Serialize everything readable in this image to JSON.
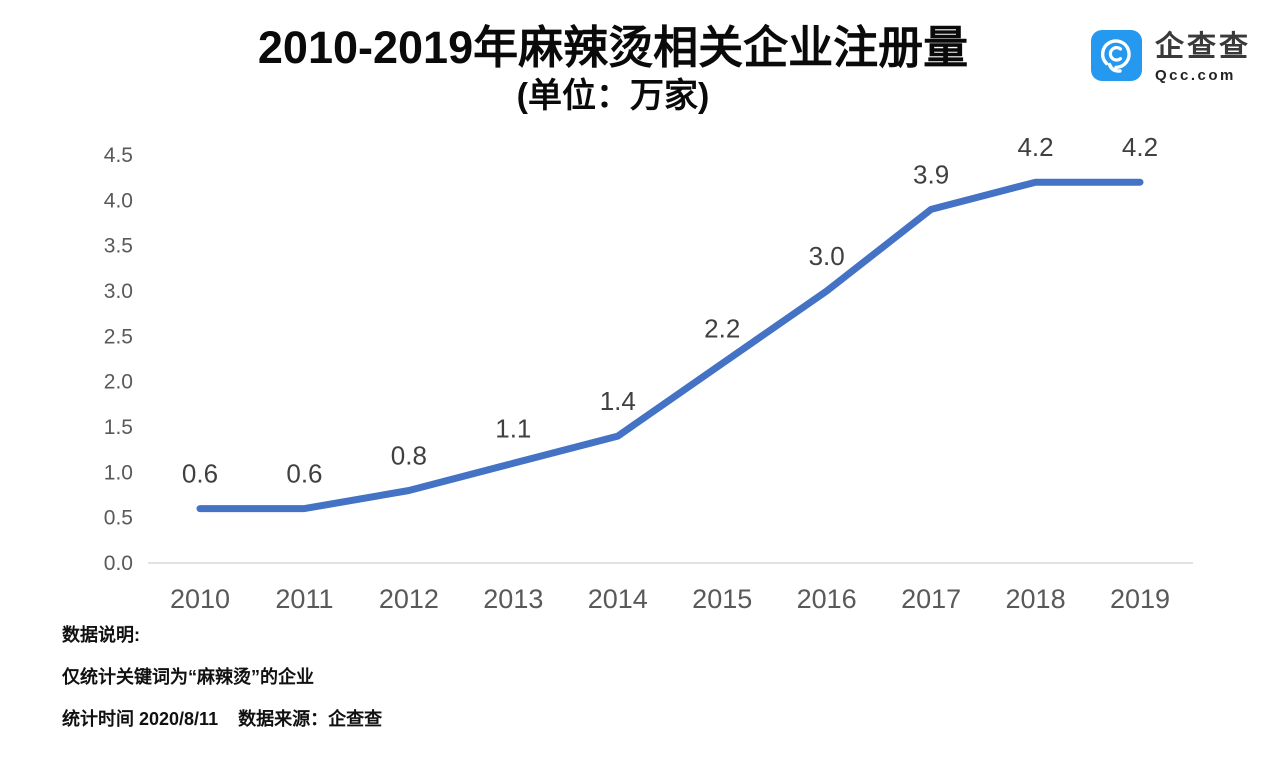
{
  "logo": {
    "name": "企查查",
    "domain": "Qcc.com",
    "icon": "qcc-magnifier-icon",
    "color": "#2598EF"
  },
  "chart_data": {
    "type": "line",
    "title": "2010-2019年麻辣烫相关企业注册量",
    "subtitle": "(单位：万家)",
    "unit": "万家",
    "categories": [
      "2010",
      "2011",
      "2012",
      "2013",
      "2014",
      "2015",
      "2016",
      "2017",
      "2018",
      "2019"
    ],
    "series": [
      {
        "name": "麻辣烫相关企业注册量",
        "values": [
          0.6,
          0.6,
          0.8,
          1.1,
          1.4,
          2.2,
          3.0,
          3.9,
          4.2,
          4.2
        ]
      }
    ],
    "data_labels": [
      "0.6",
      "0.6",
      "0.8",
      "1.1",
      "1.4",
      "2.2",
      "3.0",
      "3.9",
      "4.2",
      "4.2"
    ],
    "ylim": [
      0,
      4.5
    ],
    "ytick_step": 0.5,
    "ytick_labels": [
      "0.0",
      "0.5",
      "1.0",
      "1.5",
      "2.0",
      "2.5",
      "3.0",
      "3.5",
      "4.0",
      "4.5"
    ],
    "grid": false,
    "legend_position": "none",
    "line_color": "#4472C4",
    "axis_line_color": "#D9D9D9",
    "axis_label_color": "#595959",
    "data_label_color": "#404040"
  },
  "notes": {
    "heading": "数据说明:",
    "line1": "仅统计关键词为“麻辣烫”的企业",
    "line2": "统计时间 2020/8/11    数据来源：企查查"
  }
}
